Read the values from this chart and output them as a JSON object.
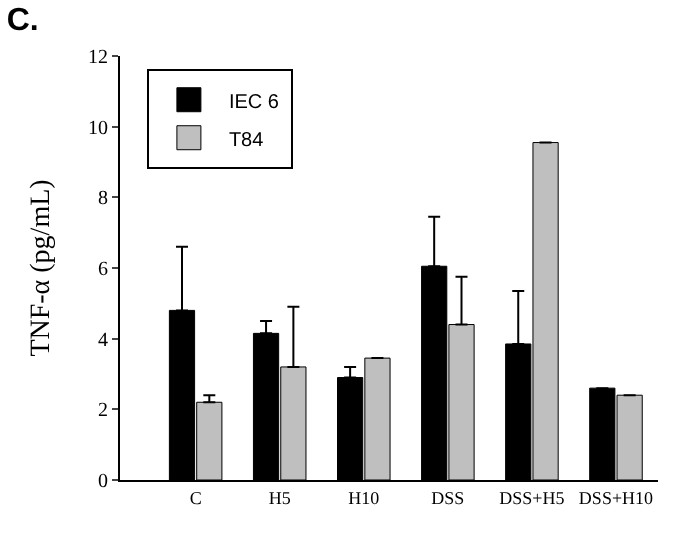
{
  "chart_data": {
    "type": "bar",
    "title": "C.",
    "ylabel": "TNF-α (pg/mL)",
    "categories": [
      "C",
      "H5",
      "H10",
      "DSS",
      "DSS+H5",
      "DSS+H10"
    ],
    "series": [
      {
        "name": "IEC 6",
        "color": "#000000",
        "values": [
          4.8,
          4.15,
          2.9,
          6.05,
          3.85,
          2.6
        ],
        "errors": [
          [
            4.8,
            6.6
          ],
          [
            4.15,
            4.5
          ],
          [
            2.9,
            3.2
          ],
          [
            6.05,
            7.45
          ],
          [
            3.85,
            5.35
          ],
          null
        ]
      },
      {
        "name": "T84",
        "color": "#bfbfbf",
        "values": [
          2.2,
          3.2,
          3.45,
          4.4,
          9.55,
          2.4
        ],
        "errors": [
          [
            2.2,
            2.4
          ],
          [
            3.2,
            4.9
          ],
          null,
          [
            4.4,
            5.75
          ],
          null,
          null
        ]
      }
    ],
    "ylim": [
      0,
      12
    ],
    "yticks": [
      0,
      2,
      4,
      6,
      8,
      10,
      12
    ],
    "legend": "top left"
  }
}
